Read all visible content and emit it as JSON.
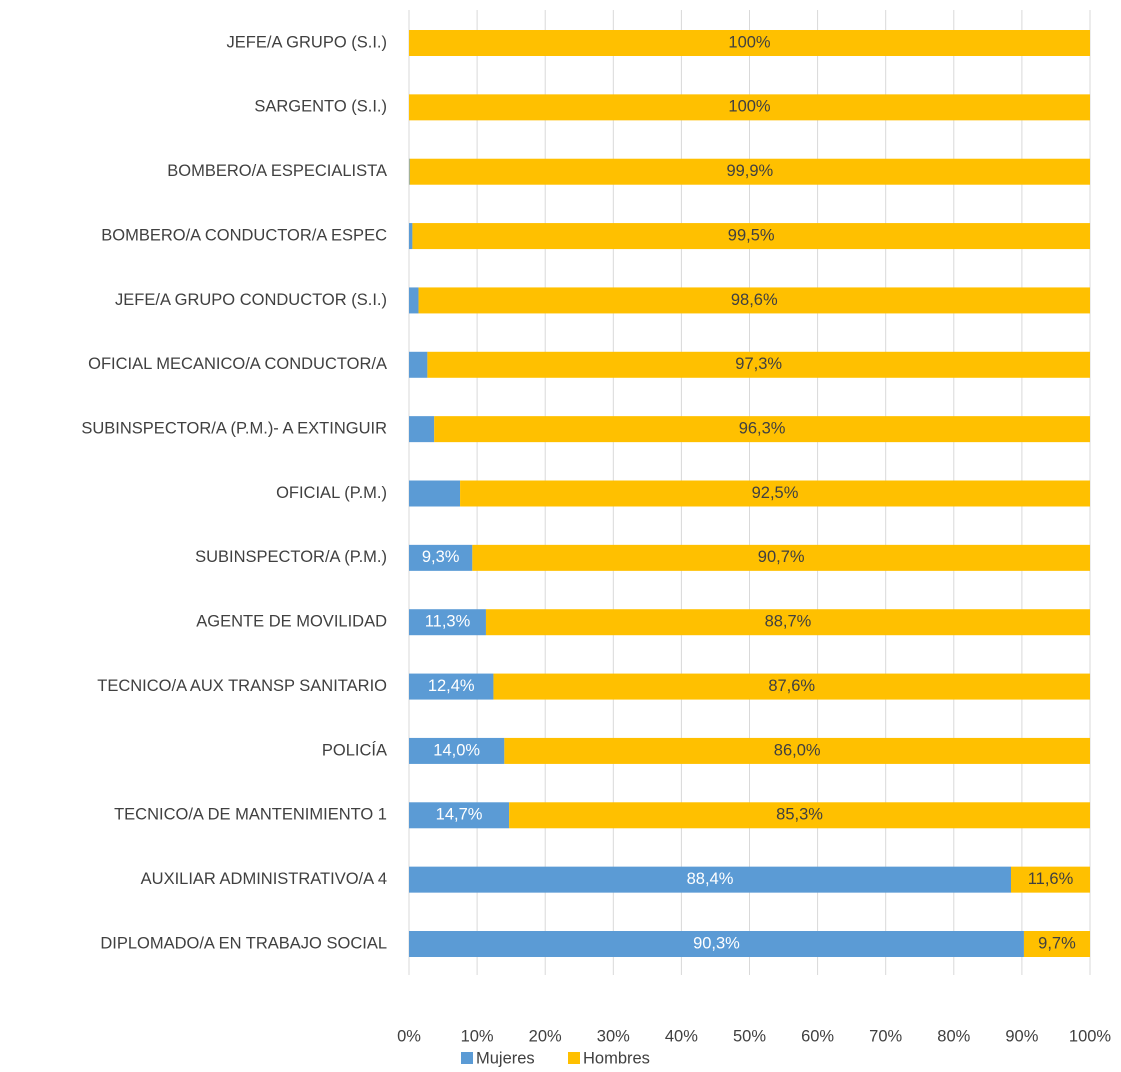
{
  "chart_data": {
    "type": "bar",
    "orientation": "horizontal",
    "stacked": true,
    "categories": [
      "JEFE/A GRUPO (S.I.)",
      "SARGENTO (S.I.)",
      "BOMBERO/A ESPECIALISTA",
      "BOMBERO/A CONDUCTOR/A ESPEC",
      "JEFE/A GRUPO CONDUCTOR (S.I.)",
      "OFICIAL MECANICO/A CONDUCTOR/A",
      "SUBINSPECTOR/A (P.M.)- A EXTINGUIR",
      "OFICIAL (P.M.)",
      "SUBINSPECTOR/A (P.M.)",
      "AGENTE DE MOVILIDAD",
      "TECNICO/A AUX TRANSP SANITARIO",
      "POLICÍA",
      "TECNICO/A DE MANTENIMIENTO 1",
      "AUXILIAR ADMINISTRATIVO/A 4",
      "DIPLOMADO/A EN TRABAJO SOCIAL"
    ],
    "series": [
      {
        "name": "Mujeres",
        "color": "#5b9bd5",
        "values": [
          0,
          0,
          0.1,
          0.5,
          1.4,
          2.7,
          3.7,
          7.5,
          9.3,
          11.3,
          12.4,
          14.0,
          14.7,
          88.4,
          90.3
        ],
        "value_labels": [
          null,
          null,
          "0,1%",
          "0,5%",
          "1,4%",
          "2,7%",
          "3,7%",
          "7,5%",
          "9,3%",
          "11,3%",
          "12,4%",
          "14,0%",
          "14,7%",
          "88,4%",
          "90,3%"
        ]
      },
      {
        "name": "Hombres",
        "color": "#ffc000",
        "values": [
          100,
          100,
          99.9,
          99.5,
          98.6,
          97.3,
          96.3,
          92.5,
          90.7,
          88.7,
          87.6,
          86.0,
          85.3,
          11.6,
          9.7
        ],
        "value_labels": [
          "100%",
          "100%",
          "99,9%",
          "99,5%",
          "98,6%",
          "97,3%",
          "96,3%",
          "92,5%",
          "90,7%",
          "88,7%",
          "87,6%",
          "86,0%",
          "85,3%",
          "11,6%",
          "9,7%"
        ]
      }
    ],
    "xlim": [
      0,
      100
    ],
    "xticks": [
      {
        "value": 0,
        "label": "0%"
      },
      {
        "value": 10,
        "label": "10%"
      },
      {
        "value": 20,
        "label": "20%"
      },
      {
        "value": 30,
        "label": "30%"
      },
      {
        "value": 40,
        "label": "40%"
      },
      {
        "value": 50,
        "label": "50%"
      },
      {
        "value": 60,
        "label": "60%"
      },
      {
        "value": 70,
        "label": "70%"
      },
      {
        "value": 80,
        "label": "80%"
      },
      {
        "value": 90,
        "label": "90%"
      },
      {
        "value": 100,
        "label": "100%"
      }
    ],
    "grid": true,
    "legend": "bottom"
  }
}
